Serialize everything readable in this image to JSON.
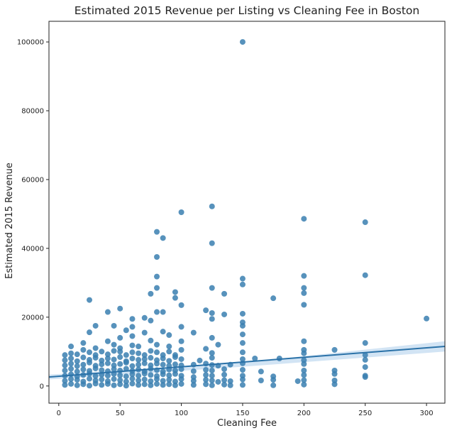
{
  "chart_data": {
    "type": "scatter",
    "title": "Estimated 2015 Revenue per Listing vs Cleaning Fee in Boston",
    "xlabel": "Cleaning Fee",
    "ylabel": "Estimated 2015 Revenue",
    "xlim": [
      -8,
      315
    ],
    "ylim": [
      -5000,
      106000
    ],
    "xticks": [
      0,
      50,
      100,
      150,
      200,
      250,
      300
    ],
    "yticks": [
      0,
      20000,
      40000,
      60000,
      80000,
      100000
    ],
    "grid": false,
    "points_color": "#3a7fb0",
    "regression": {
      "line": [
        [
          -8,
          2600
        ],
        [
          315,
          11500
        ]
      ],
      "ci_upper": [
        [
          -8,
          3300
        ],
        [
          150,
          6800
        ],
        [
          315,
          13000
        ]
      ],
      "ci_lower": [
        [
          -8,
          1900
        ],
        [
          150,
          5600
        ],
        [
          315,
          10000
        ]
      ],
      "color": "#2b72a8"
    },
    "points": [
      [
        150,
        100000
      ],
      [
        100,
        50500
      ],
      [
        125,
        52200
      ],
      [
        200,
        48600
      ],
      [
        250,
        47600
      ],
      [
        80,
        44800
      ],
      [
        85,
        43000
      ],
      [
        125,
        41500
      ],
      [
        80,
        37500
      ],
      [
        200,
        32000
      ],
      [
        250,
        32200
      ],
      [
        80,
        31800
      ],
      [
        150,
        31200
      ],
      [
        150,
        29500
      ],
      [
        80,
        28500
      ],
      [
        125,
        28500
      ],
      [
        200,
        28500
      ],
      [
        95,
        27300
      ],
      [
        135,
        26800
      ],
      [
        75,
        26800
      ],
      [
        200,
        27000
      ],
      [
        95,
        25600
      ],
      [
        175,
        25500
      ],
      [
        25,
        25000
      ],
      [
        300,
        19600
      ],
      [
        100,
        23500
      ],
      [
        200,
        23600
      ],
      [
        50,
        22500
      ],
      [
        120,
        22000
      ],
      [
        40,
        21500
      ],
      [
        80,
        21500
      ],
      [
        85,
        21500
      ],
      [
        125,
        21200
      ],
      [
        135,
        20800
      ],
      [
        150,
        21000
      ],
      [
        70,
        19800
      ],
      [
        60,
        19500
      ],
      [
        75,
        19000
      ],
      [
        100,
        17200
      ],
      [
        125,
        19500
      ],
      [
        110,
        15500
      ],
      [
        150,
        17500
      ],
      [
        150,
        18500
      ],
      [
        30,
        17500
      ],
      [
        45,
        17500
      ],
      [
        25,
        15600
      ],
      [
        60,
        17200
      ],
      [
        55,
        16200
      ],
      [
        70,
        15500
      ],
      [
        85,
        15800
      ],
      [
        60,
        14500
      ],
      [
        90,
        14800
      ],
      [
        125,
        14000
      ],
      [
        150,
        15000
      ],
      [
        50,
        14000
      ],
      [
        40,
        13000
      ],
      [
        75,
        13200
      ],
      [
        100,
        13000
      ],
      [
        200,
        13000
      ],
      [
        250,
        12500
      ],
      [
        20,
        12500
      ],
      [
        45,
        12000
      ],
      [
        60,
        11800
      ],
      [
        80,
        12000
      ],
      [
        130,
        12000
      ],
      [
        150,
        12500
      ],
      [
        10,
        11500
      ],
      [
        30,
        11000
      ],
      [
        50,
        11000
      ],
      [
        65,
        11500
      ],
      [
        90,
        11500
      ],
      [
        200,
        10500
      ],
      [
        225,
        10500
      ],
      [
        120,
        10800
      ],
      [
        5,
        9000
      ],
      [
        10,
        9500
      ],
      [
        15,
        9200
      ],
      [
        20,
        10500
      ],
      [
        25,
        9800
      ],
      [
        30,
        9000
      ],
      [
        35,
        10000
      ],
      [
        40,
        9200
      ],
      [
        45,
        10200
      ],
      [
        50,
        10000
      ],
      [
        55,
        9000
      ],
      [
        60,
        9800
      ],
      [
        65,
        9500
      ],
      [
        70,
        9000
      ],
      [
        75,
        10200
      ],
      [
        80,
        9800
      ],
      [
        85,
        9000
      ],
      [
        90,
        10000
      ],
      [
        95,
        9000
      ],
      [
        100,
        10500
      ],
      [
        125,
        9600
      ],
      [
        150,
        9800
      ],
      [
        200,
        9500
      ],
      [
        250,
        9000
      ],
      [
        5,
        7500
      ],
      [
        10,
        8000
      ],
      [
        15,
        7200
      ],
      [
        20,
        8300
      ],
      [
        25,
        7600
      ],
      [
        30,
        8200
      ],
      [
        35,
        7400
      ],
      [
        40,
        8000
      ],
      [
        45,
        7700
      ],
      [
        50,
        8400
      ],
      [
        55,
        7200
      ],
      [
        60,
        8000
      ],
      [
        65,
        7600
      ],
      [
        70,
        7800
      ],
      [
        75,
        8200
      ],
      [
        80,
        7500
      ],
      [
        85,
        8000
      ],
      [
        90,
        7300
      ],
      [
        95,
        8400
      ],
      [
        100,
        7800
      ],
      [
        115,
        7400
      ],
      [
        125,
        8200
      ],
      [
        150,
        7800
      ],
      [
        160,
        8000
      ],
      [
        180,
        8000
      ],
      [
        200,
        7500
      ],
      [
        250,
        7600
      ],
      [
        5,
        6000
      ],
      [
        10,
        6500
      ],
      [
        15,
        5800
      ],
      [
        20,
        6200
      ],
      [
        25,
        6800
      ],
      [
        30,
        5900
      ],
      [
        35,
        6300
      ],
      [
        40,
        6600
      ],
      [
        45,
        6000
      ],
      [
        50,
        6400
      ],
      [
        55,
        6800
      ],
      [
        60,
        5800
      ],
      [
        65,
        6200
      ],
      [
        70,
        6600
      ],
      [
        75,
        6000
      ],
      [
        80,
        6500
      ],
      [
        85,
        6200
      ],
      [
        90,
        5900
      ],
      [
        95,
        6300
      ],
      [
        100,
        6000
      ],
      [
        110,
        6200
      ],
      [
        120,
        6500
      ],
      [
        125,
        6100
      ],
      [
        130,
        5900
      ],
      [
        140,
        6200
      ],
      [
        150,
        6600
      ],
      [
        200,
        6400
      ],
      [
        250,
        5500
      ],
      [
        5,
        4500
      ],
      [
        10,
        5000
      ],
      [
        15,
        4200
      ],
      [
        20,
        4800
      ],
      [
        25,
        4400
      ],
      [
        30,
        5100
      ],
      [
        35,
        4600
      ],
      [
        40,
        4300
      ],
      [
        45,
        4900
      ],
      [
        50,
        4500
      ],
      [
        55,
        5000
      ],
      [
        60,
        4400
      ],
      [
        65,
        4800
      ],
      [
        70,
        4300
      ],
      [
        75,
        5000
      ],
      [
        80,
        4600
      ],
      [
        85,
        4200
      ],
      [
        90,
        4800
      ],
      [
        95,
        4500
      ],
      [
        100,
        4900
      ],
      [
        110,
        4300
      ],
      [
        120,
        4700
      ],
      [
        125,
        4500
      ],
      [
        135,
        4900
      ],
      [
        150,
        4700
      ],
      [
        165,
        4200
      ],
      [
        200,
        4500
      ],
      [
        225,
        4500
      ],
      [
        5,
        3000
      ],
      [
        10,
        3400
      ],
      [
        15,
        2800
      ],
      [
        20,
        3200
      ],
      [
        25,
        3600
      ],
      [
        30,
        2900
      ],
      [
        35,
        3300
      ],
      [
        40,
        3000
      ],
      [
        45,
        3500
      ],
      [
        50,
        3100
      ],
      [
        55,
        2800
      ],
      [
        60,
        3400
      ],
      [
        65,
        3000
      ],
      [
        70,
        3600
      ],
      [
        75,
        3200
      ],
      [
        80,
        2900
      ],
      [
        85,
        3400
      ],
      [
        90,
        3100
      ],
      [
        95,
        3500
      ],
      [
        100,
        3000
      ],
      [
        110,
        2600
      ],
      [
        120,
        3200
      ],
      [
        125,
        3000
      ],
      [
        135,
        3300
      ],
      [
        150,
        3000
      ],
      [
        175,
        2800
      ],
      [
        200,
        3200
      ],
      [
        225,
        3500
      ],
      [
        250,
        3000
      ],
      [
        5,
        1500
      ],
      [
        10,
        2000
      ],
      [
        15,
        1800
      ],
      [
        20,
        1300
      ],
      [
        25,
        2100
      ],
      [
        30,
        1600
      ],
      [
        35,
        1900
      ],
      [
        40,
        1400
      ],
      [
        45,
        2000
      ],
      [
        50,
        1700
      ],
      [
        55,
        1300
      ],
      [
        60,
        2100
      ],
      [
        65,
        1600
      ],
      [
        70,
        1900
      ],
      [
        75,
        1400
      ],
      [
        80,
        2000
      ],
      [
        85,
        1500
      ],
      [
        90,
        1800
      ],
      [
        95,
        1300
      ],
      [
        100,
        2000
      ],
      [
        110,
        1500
      ],
      [
        120,
        1800
      ],
      [
        125,
        1600
      ],
      [
        130,
        1200
      ],
      [
        135,
        1700
      ],
      [
        140,
        1400
      ],
      [
        150,
        1900
      ],
      [
        165,
        1600
      ],
      [
        175,
        1800
      ],
      [
        195,
        1400
      ],
      [
        200,
        1700
      ],
      [
        225,
        1600
      ],
      [
        250,
        2600
      ],
      [
        5,
        300
      ],
      [
        10,
        600
      ],
      [
        15,
        200
      ],
      [
        20,
        500
      ],
      [
        25,
        100
      ],
      [
        30,
        700
      ],
      [
        35,
        300
      ],
      [
        40,
        600
      ],
      [
        45,
        200
      ],
      [
        50,
        500
      ],
      [
        55,
        100
      ],
      [
        60,
        700
      ],
      [
        65,
        300
      ],
      [
        70,
        500
      ],
      [
        75,
        200
      ],
      [
        80,
        600
      ],
      [
        85,
        300
      ],
      [
        90,
        500
      ],
      [
        95,
        200
      ],
      [
        100,
        600
      ],
      [
        110,
        300
      ],
      [
        120,
        500
      ],
      [
        125,
        200
      ],
      [
        135,
        400
      ],
      [
        140,
        200
      ],
      [
        150,
        300
      ],
      [
        175,
        200
      ],
      [
        200,
        400
      ],
      [
        225,
        500
      ]
    ]
  }
}
